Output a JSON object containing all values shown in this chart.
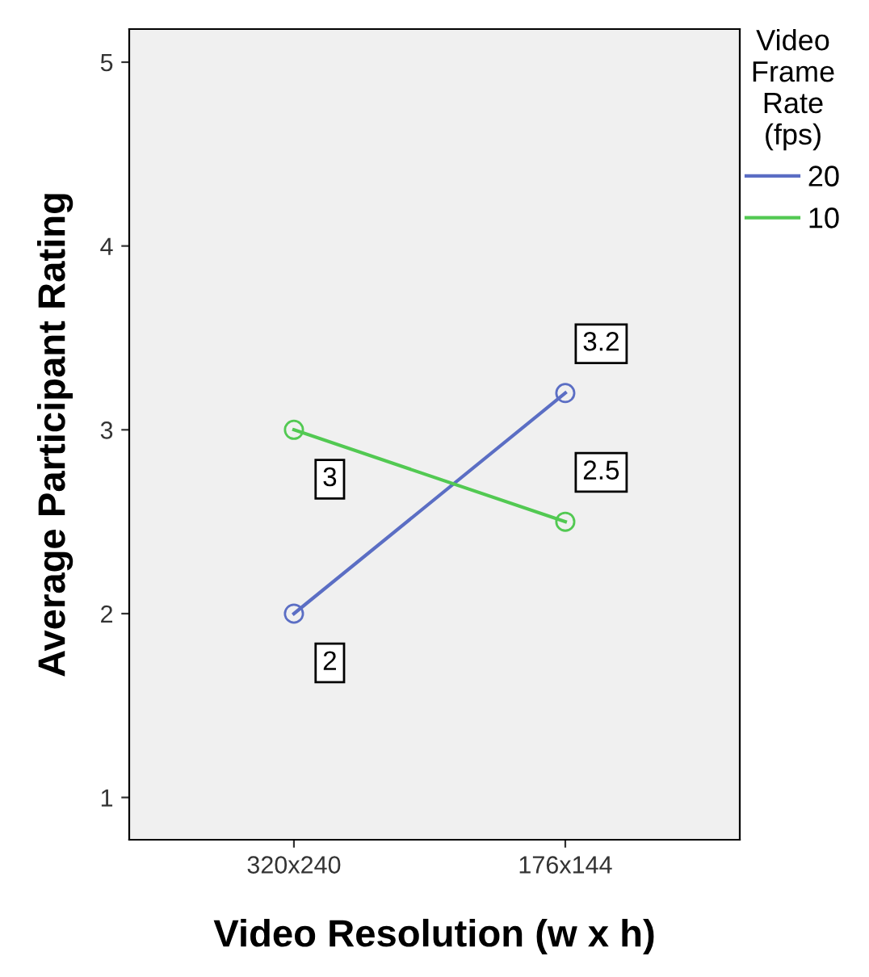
{
  "chart_data": {
    "type": "line",
    "xlabel": "Video Resolution (w x h)",
    "ylabel": "Average Participant Rating",
    "legend_title": "Video\nFrame\nRate\n(fps)",
    "categories": [
      "320x240",
      "176x144"
    ],
    "series": [
      {
        "name": "20",
        "color": "#5b6ec4",
        "values": [
          2,
          3.2
        ]
      },
      {
        "name": "10",
        "color": "#52c952",
        "values": [
          3,
          2.5
        ]
      }
    ],
    "ylim": [
      0.77,
      5.18
    ],
    "yticks": [
      1,
      2,
      3,
      4,
      5
    ],
    "marker": "circle",
    "line_style": "solid",
    "grid": false,
    "legend": "right",
    "data_labels": true
  }
}
